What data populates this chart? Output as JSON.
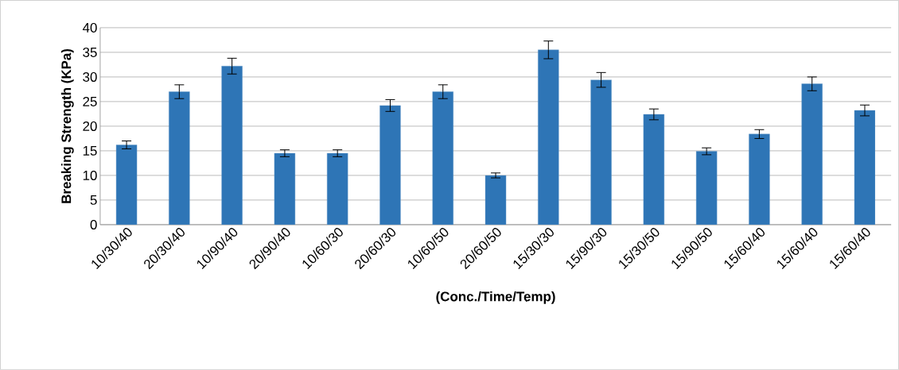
{
  "chart_data": {
    "type": "bar",
    "xlabel": "(Conc./Time/Temp)",
    "ylabel": "Breaking Strength (KPa)",
    "categories": [
      "10/30/40",
      "20/30/40",
      "10/90/40",
      "20/90/40",
      "10/60/30",
      "20/60/30",
      "10/60/50",
      "20/60/50",
      "15/30/30",
      "15/90/30",
      "15/30/50",
      "15/90/50",
      "15/60/40",
      "15/60/40",
      "15/60/40"
    ],
    "values": [
      16.2,
      27,
      32.2,
      14.5,
      14.5,
      24.2,
      27,
      10,
      35.5,
      29.4,
      22.4,
      14.9,
      18.4,
      28.6,
      23.2
    ],
    "errors": [
      0.8,
      1.4,
      1.6,
      0.7,
      0.7,
      1.2,
      1.4,
      0.5,
      1.8,
      1.5,
      1.1,
      0.7,
      0.9,
      1.4,
      1.1
    ],
    "color": "#2e75b6",
    "ylim": [
      0,
      40
    ],
    "yticks": [
      0,
      5,
      10,
      15,
      20,
      25,
      30,
      35,
      40
    ],
    "grid": "y"
  }
}
